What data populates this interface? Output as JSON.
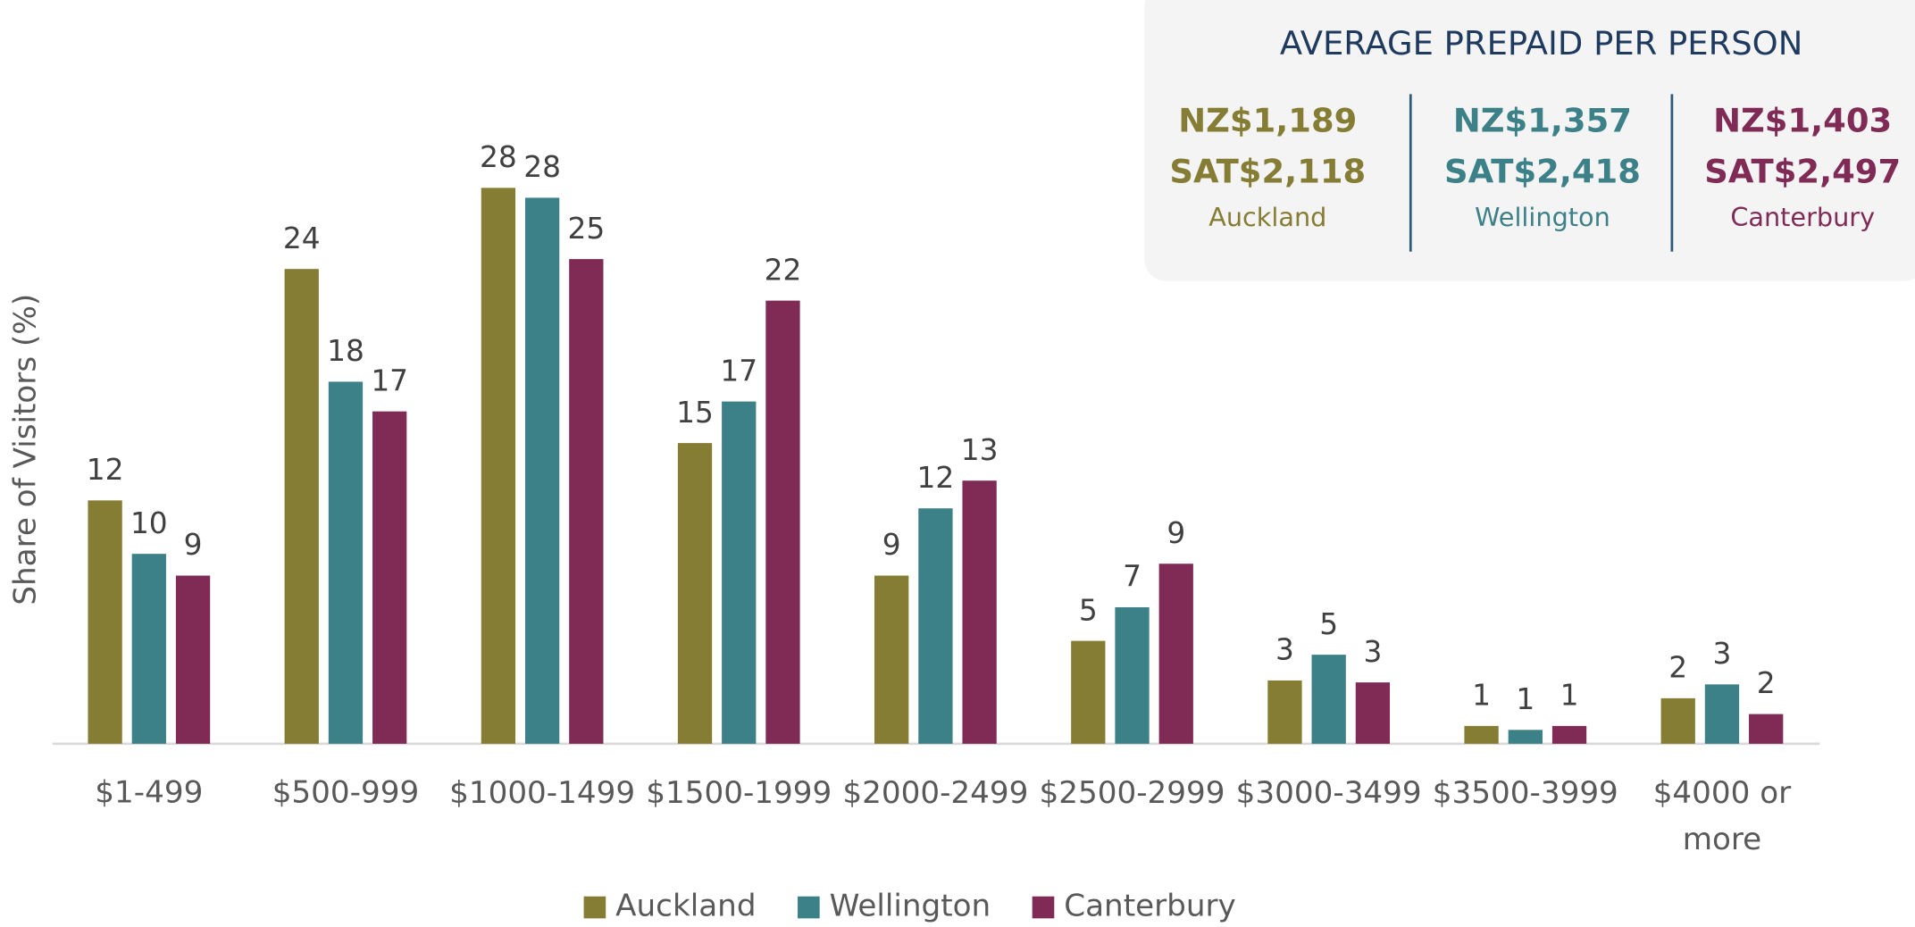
{
  "chart_data": {
    "type": "bar",
    "y_label": "Share of Visitors (%)",
    "categories": [
      "$1-499",
      "$500-999",
      "$1000-1499",
      "$1500-1999",
      "$2000-2499",
      "$2500-2999",
      "$3000-3499",
      "$3500-3999",
      "$4000 or more"
    ],
    "series": [
      {
        "name": "Auckland",
        "color": "#857d33",
        "values": [
          12.3,
          24.0,
          28.1,
          15.2,
          8.5,
          5.2,
          3.2,
          0.9,
          2.3
        ],
        "value_labels": [
          "12",
          "24",
          "28",
          "15",
          "9",
          "5",
          "3",
          "1",
          "2"
        ]
      },
      {
        "name": "Wellington",
        "color": "#3c8088",
        "values": [
          9.6,
          18.3,
          27.6,
          17.3,
          11.9,
          6.9,
          4.5,
          0.7,
          3.0
        ],
        "value_labels": [
          "10",
          "18",
          "28",
          "17",
          "12",
          "7",
          "5",
          "1",
          "3"
        ]
      },
      {
        "name": "Canterbury",
        "color": "#7f2b56",
        "values": [
          8.5,
          16.8,
          24.5,
          22.4,
          13.3,
          9.1,
          3.1,
          0.9,
          1.5
        ],
        "value_labels": [
          "9",
          "17",
          "25",
          "22",
          "13",
          "9",
          "3",
          "1",
          "2"
        ]
      }
    ],
    "ylim": [
      0,
      30
    ],
    "grid": false,
    "legend": "bottom",
    "summary": {
      "title": "AVERAGE PREPAID PER PERSON",
      "items": [
        {
          "nz": "NZ$1,189",
          "sat": "SAT$2,118",
          "region": "Auckland",
          "color": "#857d33"
        },
        {
          "nz": "NZ$1,357",
          "sat": "SAT$2,418",
          "region": "Wellington",
          "color": "#3c8088"
        },
        {
          "nz": "NZ$1,403",
          "sat": "SAT$2,497",
          "region": "Canterbury",
          "color": "#7f2b56"
        }
      ]
    }
  }
}
